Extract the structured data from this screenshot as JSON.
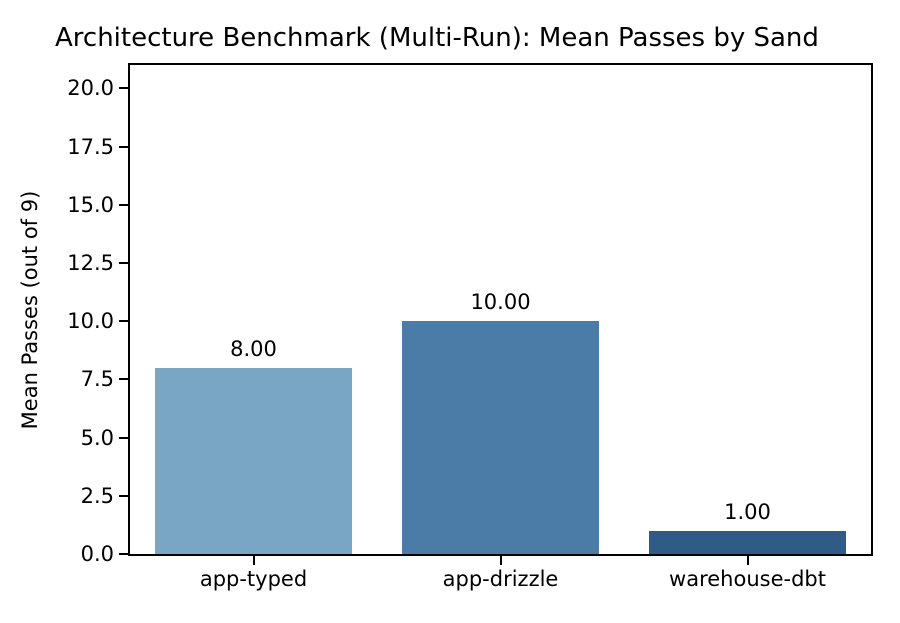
{
  "chart_data": {
    "type": "bar",
    "title": "Architecture Benchmark (Multi-Run): Mean Passes by Sand",
    "ylabel": "Mean Passes (out of 9)",
    "xlabel": "",
    "categories": [
      "app-typed",
      "app-drizzle",
      "warehouse-dbt"
    ],
    "values": [
      8.0,
      10.0,
      1.0
    ],
    "value_labels": [
      "8.00",
      "10.00",
      "1.00"
    ],
    "bar_colors": [
      "#79a6c5",
      "#4b7ca7",
      "#2e5c87"
    ],
    "ylim": [
      0,
      21
    ],
    "yticks": [
      0.0,
      2.5,
      5.0,
      7.5,
      10.0,
      12.5,
      15.0,
      17.5,
      20.0
    ],
    "ytick_labels": [
      "0.0",
      "2.5",
      "5.0",
      "7.5",
      "10.0",
      "12.5",
      "15.0",
      "17.5",
      "20.0"
    ],
    "grid": false,
    "legend": null,
    "bar_width_fraction": 0.8,
    "text_color": "#000000",
    "spine_color": "#000000",
    "background_color": "#ffffff"
  }
}
